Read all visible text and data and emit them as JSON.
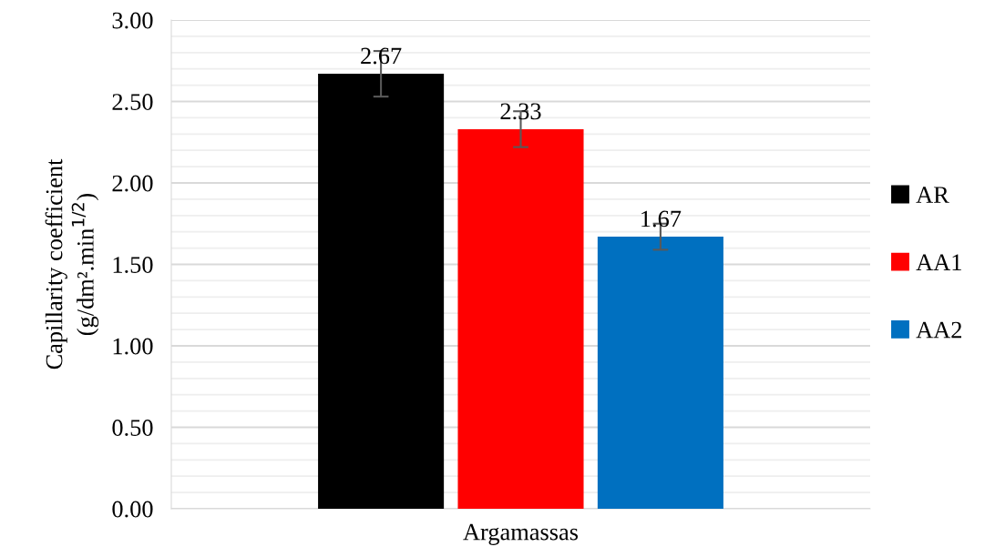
{
  "chart_data": {
    "type": "bar",
    "xlabel": "Argamassas",
    "ylabel": "Capillarity coefficient\n(g/dm².min$^{1/2}$)",
    "categories": [
      null
    ],
    "series": [
      {
        "name": "AR",
        "color": "#000000",
        "values": [
          2.67
        ],
        "errors": [
          0.14
        ]
      },
      {
        "name": "AA1",
        "color": "#ff0000",
        "values": [
          2.33
        ],
        "errors": [
          0.11
        ]
      },
      {
        "name": "AA2",
        "color": "#0070c0",
        "values": [
          1.67
        ],
        "errors": [
          0.08
        ]
      }
    ],
    "ylim": [
      0,
      3
    ],
    "yticks": [
      {
        "value": 0,
        "label": "0.00"
      },
      {
        "value": 0.5,
        "label": "0.50"
      },
      {
        "value": 1,
        "label": "1.00"
      },
      {
        "value": 1.5,
        "label": "1.50"
      },
      {
        "value": 2,
        "label": "2.00"
      },
      {
        "value": 2.5,
        "label": "2.50"
      },
      {
        "value": 3,
        "label": "3.00"
      }
    ],
    "grid": "y",
    "legend": "right",
    "data_labels": true
  }
}
